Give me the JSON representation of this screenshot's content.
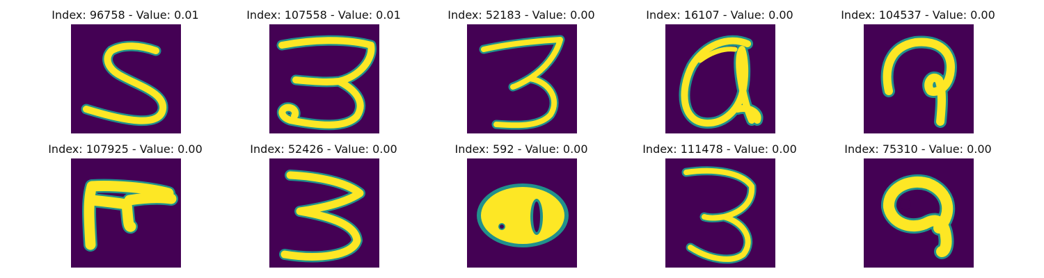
{
  "colors": {
    "background": "#440154",
    "stroke": "#fde725",
    "edge": "#21918c"
  },
  "panels": [
    {
      "title": "Index: 96758 - Value: 0.01",
      "glyph": "five"
    },
    {
      "title": "Index: 107558 - Value: 0.01",
      "glyph": "three-curl"
    },
    {
      "title": "Index: 52183 - Value: 0.00",
      "glyph": "three-thin"
    },
    {
      "title": "Index: 16107 - Value: 0.00",
      "glyph": "loop-a"
    },
    {
      "title": "Index: 104537 - Value: 0.00",
      "glyph": "hook"
    },
    {
      "title": "Index: 107925 - Value: 0.00",
      "glyph": "f-shape"
    },
    {
      "title": "Index: 52426 - Value: 0.00",
      "glyph": "three-wide"
    },
    {
      "title": "Index: 592 - Value: 0.00",
      "glyph": "blob-eight"
    },
    {
      "title": "Index: 111478 - Value: 0.00",
      "glyph": "three-tall"
    },
    {
      "title": "Index: 75310 - Value: 0.00",
      "glyph": "nine-blob"
    }
  ]
}
